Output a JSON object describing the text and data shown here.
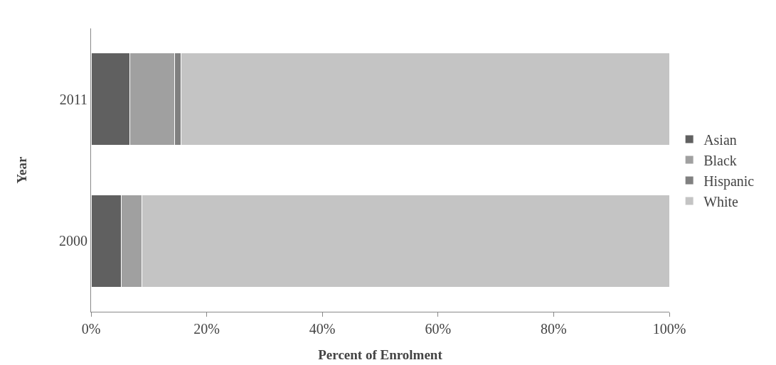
{
  "chart_data": {
    "type": "bar",
    "orientation": "horizontal",
    "stacked": true,
    "xlabel": "Percent of Enrolment",
    "ylabel": "Year",
    "categories": [
      "2011",
      "2000"
    ],
    "series": [
      {
        "name": "Asian",
        "color": "#606060",
        "values": [
          6.7,
          5.2
        ]
      },
      {
        "name": "Black",
        "color": "#a0a0a0",
        "values": [
          7.7,
          3.6
        ]
      },
      {
        "name": "Hispanic",
        "color": "#808080",
        "values": [
          1.2,
          null
        ]
      },
      {
        "name": "White",
        "color": "#c4c4c4",
        "values": [
          84.4,
          91.2
        ]
      }
    ],
    "xlim": [
      0,
      100
    ],
    "xticks": [
      {
        "value": 0,
        "label": "0%"
      },
      {
        "value": 20,
        "label": "20%"
      },
      {
        "value": 40,
        "label": "40%"
      },
      {
        "value": 60,
        "label": "60%"
      },
      {
        "value": 80,
        "label": "80%"
      },
      {
        "value": 100,
        "label": "100%"
      }
    ],
    "grid": false,
    "legend": "right"
  }
}
